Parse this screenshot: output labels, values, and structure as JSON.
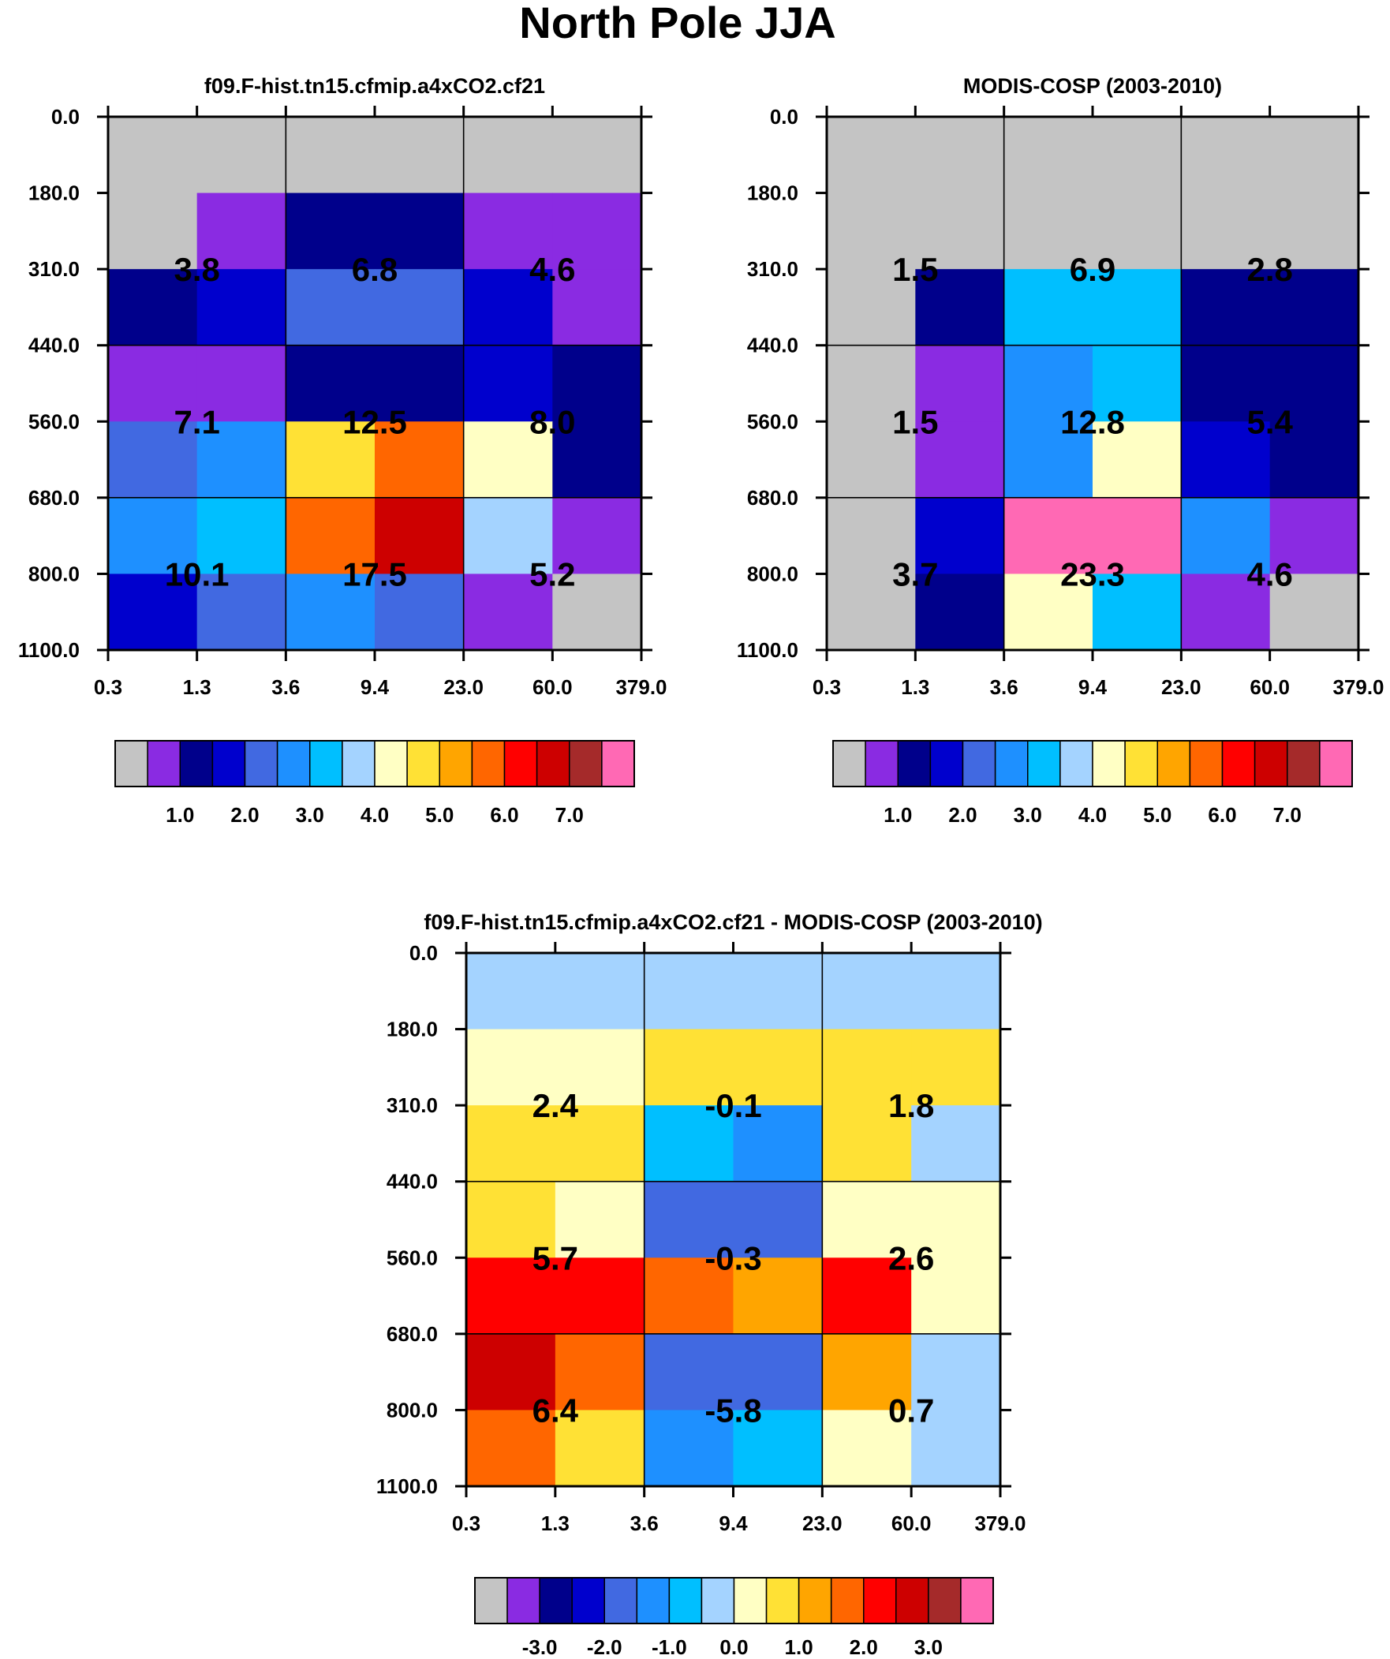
{
  "title": "North Pole JJA",
  "chart_data": [
    {
      "type": "heatmap",
      "title": "f09.F-hist.tn15.cfmip.a4xCO2.cf21",
      "x_ticks": [
        "0.3",
        "1.3",
        "3.6",
        "9.4",
        "23.0",
        "60.0",
        "379.0"
      ],
      "y_ticks": [
        "0.0",
        "180.0",
        "310.0",
        "440.0",
        "560.0",
        "680.0",
        "800.0",
        "1100.0"
      ],
      "cells": [
        [
          0,
          0,
          0,
          0,
          0,
          0
        ],
        [
          0,
          1,
          2,
          2,
          1,
          1
        ],
        [
          2,
          3,
          4,
          4,
          3,
          1
        ],
        [
          1,
          1,
          2,
          2,
          3,
          2
        ],
        [
          4,
          5,
          9,
          11,
          8,
          2
        ],
        [
          5,
          6,
          11,
          13,
          7,
          1
        ],
        [
          3,
          4,
          5,
          4,
          1,
          0
        ]
      ],
      "labels": [
        "3.8",
        "6.8",
        "4.6",
        "7.1",
        "12.5",
        "8.0",
        "10.1",
        "17.5",
        "5.2"
      ],
      "colorbar_labels": [
        "1.0",
        "2.0",
        "3.0",
        "4.0",
        "5.0",
        "6.0",
        "7.0"
      ]
    },
    {
      "type": "heatmap",
      "title": "MODIS-COSP (2003-2010)",
      "x_ticks": [
        "0.3",
        "1.3",
        "3.6",
        "9.4",
        "23.0",
        "60.0",
        "379.0"
      ],
      "y_ticks": [
        "0.0",
        "180.0",
        "310.0",
        "440.0",
        "560.0",
        "680.0",
        "800.0",
        "1100.0"
      ],
      "cells": [
        [
          0,
          0,
          0,
          0,
          0,
          0
        ],
        [
          0,
          0,
          0,
          0,
          0,
          0
        ],
        [
          0,
          2,
          6,
          6,
          2,
          2
        ],
        [
          0,
          1,
          5,
          6,
          2,
          2
        ],
        [
          0,
          1,
          5,
          8,
          3,
          2
        ],
        [
          0,
          3,
          15,
          15,
          5,
          1
        ],
        [
          0,
          2,
          8,
          6,
          1,
          0
        ]
      ],
      "labels": [
        "1.5",
        "6.9",
        "2.8",
        "1.5",
        "12.8",
        "5.4",
        "3.7",
        "23.3",
        "4.6"
      ],
      "colorbar_labels": [
        "1.0",
        "2.0",
        "3.0",
        "4.0",
        "5.0",
        "6.0",
        "7.0"
      ]
    },
    {
      "type": "heatmap",
      "title": "f09.F-hist.tn15.cfmip.a4xCO2.cf21 - MODIS-COSP (2003-2010)",
      "x_ticks": [
        "0.3",
        "1.3",
        "3.6",
        "9.4",
        "23.0",
        "60.0",
        "379.0"
      ],
      "y_ticks": [
        "0.0",
        "180.0",
        "310.0",
        "440.0",
        "560.0",
        "680.0",
        "800.0",
        "1100.0"
      ],
      "cells": [
        [
          7,
          7,
          7,
          7,
          7,
          7
        ],
        [
          8,
          8,
          9,
          9,
          9,
          9
        ],
        [
          9,
          9,
          6,
          5,
          9,
          7
        ],
        [
          9,
          8,
          4,
          4,
          8,
          8
        ],
        [
          12,
          12,
          11,
          10,
          12,
          8
        ],
        [
          13,
          11,
          4,
          4,
          10,
          7
        ],
        [
          11,
          9,
          5,
          6,
          8,
          7
        ]
      ],
      "labels": [
        "2.4",
        "-0.1",
        "1.8",
        "5.7",
        "-0.3",
        "2.6",
        "6.4",
        "-5.8",
        "0.7"
      ],
      "colorbar_labels": [
        "-3.0",
        "-2.0",
        "-1.0",
        "0.0",
        "1.0",
        "2.0",
        "3.0"
      ]
    }
  ],
  "palette": [
    "#c4c4c4",
    "#8a2be2",
    "#00008b",
    "#0000cd",
    "#4169e1",
    "#1e90ff",
    "#00bfff",
    "#a4d3ff",
    "#ffffc4",
    "#ffe135",
    "#ffa500",
    "#ff6600",
    "#ff0000",
    "#cd0000",
    "#a52a2a",
    "#ff69b4"
  ]
}
